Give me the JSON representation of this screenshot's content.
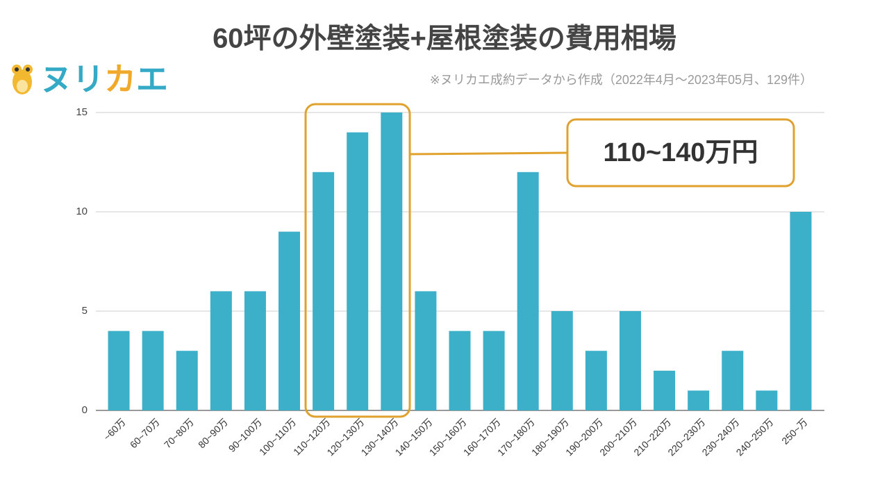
{
  "chart_data": {
    "type": "bar",
    "title": "60坪の外壁塗装+屋根塗装の費用相場",
    "subtitle": "※ヌリカエ成約データから作成（2022年4月～2023年05月、129件）",
    "logo": [
      "ヌリ",
      "カ",
      "エ"
    ],
    "categories": [
      "~60万",
      "60~70万",
      "70~80万",
      "80~90万",
      "90~100万",
      "100~110万",
      "110~120万",
      "120~130万",
      "130~140万",
      "140~150万",
      "150~160万",
      "160~170万",
      "170~180万",
      "180~190万",
      "190~200万",
      "200~210万",
      "210~220万",
      "220~230万",
      "230~240万",
      "240~250万",
      "250~万"
    ],
    "values": [
      4,
      4,
      3,
      6,
      6,
      9,
      12,
      14,
      15,
      6,
      4,
      4,
      12,
      5,
      3,
      5,
      2,
      1,
      3,
      1,
      10
    ],
    "color": "#3cb0c9",
    "ylim": [
      0,
      15
    ],
    "yticks": [
      0,
      5,
      10,
      15
    ],
    "grid": true,
    "annotation": {
      "text": "110~140万円",
      "color": "#e0a22c"
    }
  }
}
